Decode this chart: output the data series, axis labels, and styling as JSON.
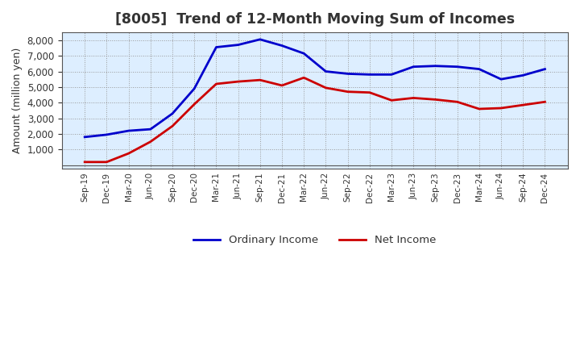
{
  "title": "[8005]  Trend of 12-Month Moving Sum of Incomes",
  "ylabel": "Amount (million yen)",
  "x_labels": [
    "Sep-19",
    "Dec-19",
    "Mar-20",
    "Jun-20",
    "Sep-20",
    "Dec-20",
    "Mar-21",
    "Jun-21",
    "Sep-21",
    "Dec-21",
    "Mar-22",
    "Jun-22",
    "Sep-22",
    "Dec-22",
    "Mar-23",
    "Jun-23",
    "Sep-23",
    "Dec-23",
    "Mar-24",
    "Jun-24",
    "Sep-24",
    "Dec-24"
  ],
  "ordinary_income": [
    1800,
    1950,
    2200,
    2300,
    3300,
    4900,
    7550,
    7700,
    8050,
    7650,
    7150,
    6000,
    5850,
    5800,
    5800,
    6300,
    6350,
    6300,
    6150,
    5500,
    5750,
    6150
  ],
  "net_income": [
    200,
    200,
    750,
    1500,
    2500,
    3900,
    5200,
    5350,
    5450,
    5100,
    5600,
    4950,
    4700,
    4650,
    4150,
    4300,
    4200,
    4050,
    3600,
    3650,
    3850,
    4050
  ],
  "ordinary_color": "#0000cc",
  "net_color": "#cc0000",
  "background_color": "#ffffff",
  "plot_bg_color": "#ddeeff",
  "grid_color": "#999999",
  "ylim_min": -200,
  "ylim_max": 8500,
  "yticks": [
    1000,
    2000,
    3000,
    4000,
    5000,
    6000,
    7000,
    8000
  ],
  "line_width": 2.0,
  "title_color": "#333333",
  "title_fontsize": 12.5
}
